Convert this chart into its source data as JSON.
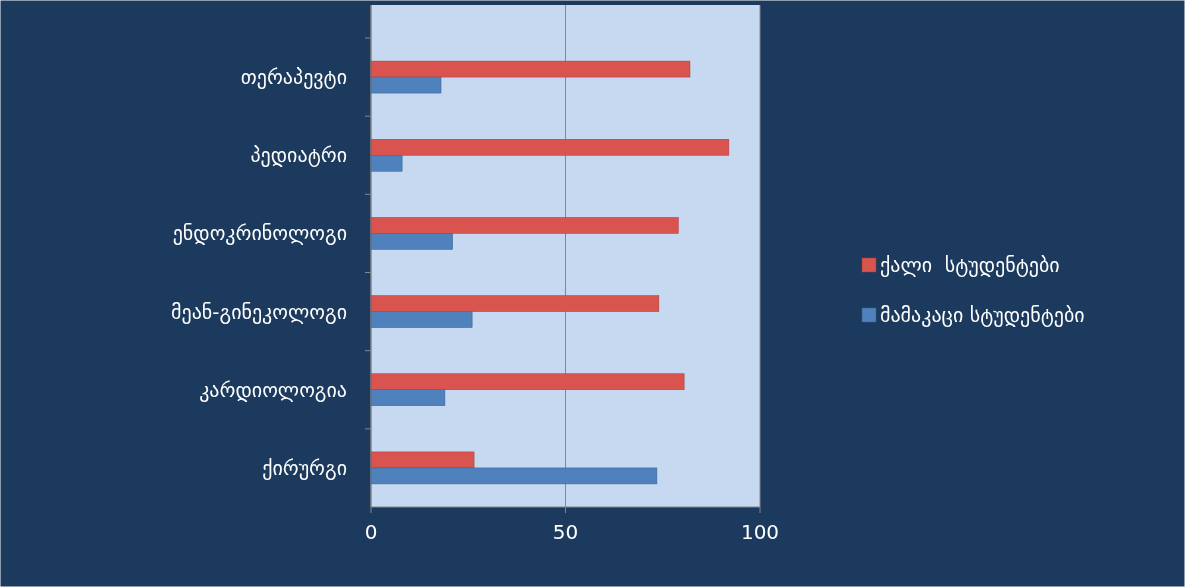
{
  "chart_data": {
    "type": "bar",
    "orientation": "horizontal",
    "categories": [
      "თერაპევტი",
      "პედიატრი",
      "ენდოკრინოლოგი",
      "მეან-გინეკოლოგი",
      "კარდიოლოგია",
      "ქირურგი"
    ],
    "series": [
      {
        "name": "ქალი  სტუდენტები",
        "color": "#d9534f",
        "values": [
          82,
          92,
          79,
          74,
          80.5,
          26.5
        ]
      },
      {
        "name": "მამაკაცი სტუდენტები",
        "color": "#4f81bd",
        "values": [
          18,
          8,
          21,
          26,
          19,
          73.5
        ]
      }
    ],
    "xlim": [
      0,
      100
    ],
    "xticks": [
      0,
      50,
      100
    ],
    "grid": "x",
    "legend": "right"
  }
}
